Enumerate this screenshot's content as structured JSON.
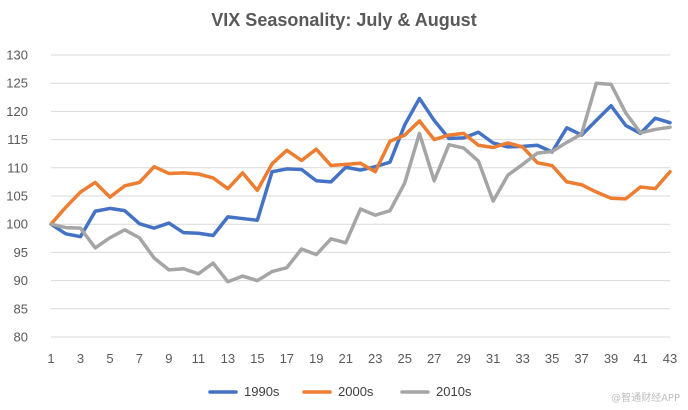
{
  "watermark": "@智通财经APP",
  "chart_data": {
    "type": "line",
    "title": "VIX Seasonality: July & August",
    "xlabel": "",
    "ylabel": "",
    "ylim": [
      80,
      130
    ],
    "yticks": [
      80,
      85,
      90,
      95,
      100,
      105,
      110,
      115,
      120,
      125,
      130
    ],
    "xlim": [
      1,
      43
    ],
    "xticks": [
      1,
      3,
      5,
      7,
      9,
      11,
      13,
      15,
      17,
      19,
      21,
      23,
      25,
      27,
      29,
      31,
      33,
      35,
      37,
      39,
      41,
      43
    ],
    "grid": true,
    "legend_position": "bottom",
    "x": [
      1,
      2,
      3,
      4,
      5,
      6,
      7,
      8,
      9,
      10,
      11,
      12,
      13,
      14,
      15,
      16,
      17,
      18,
      19,
      20,
      21,
      22,
      23,
      24,
      25,
      26,
      27,
      28,
      29,
      30,
      31,
      32,
      33,
      34,
      35,
      36,
      37,
      38,
      39,
      40,
      41,
      42,
      43
    ],
    "series": [
      {
        "name": "1990s",
        "color": "#4472C4",
        "values": [
          100,
          98.3,
          97.8,
          102.3,
          102.8,
          102.4,
          100.1,
          99.3,
          100.2,
          98.5,
          98.4,
          98.0,
          101.3,
          101.0,
          100.7,
          109.3,
          109.8,
          109.7,
          107.7,
          107.5,
          110.1,
          109.6,
          110.2,
          111.0,
          117.6,
          122.3,
          118.4,
          115.2,
          115.3,
          116.3,
          114.4,
          113.7,
          113.8,
          114.0,
          112.8,
          117.1,
          115.8,
          118.4,
          121.0,
          117.5,
          116.1,
          118.8,
          118.0
        ]
      },
      {
        "name": "2000s",
        "color": "#ED7D31",
        "values": [
          100,
          103.0,
          105.7,
          107.4,
          104.8,
          106.8,
          107.4,
          110.2,
          109.0,
          109.1,
          108.9,
          108.2,
          106.3,
          109.1,
          106.0,
          110.7,
          113.1,
          111.3,
          113.3,
          110.4,
          110.6,
          110.8,
          109.3,
          114.7,
          115.8,
          118.3,
          115.0,
          115.8,
          116.1,
          114.0,
          113.6,
          114.4,
          113.7,
          110.9,
          110.4,
          107.5,
          107.0,
          105.7,
          104.6,
          104.5,
          106.6,
          106.3,
          109.3
        ]
      },
      {
        "name": "2010s",
        "color": "#A5A5A5",
        "values": [
          100,
          99.4,
          99.3,
          95.8,
          97.6,
          99.0,
          97.6,
          94.0,
          91.9,
          92.1,
          91.2,
          93.1,
          89.8,
          90.8,
          90.0,
          91.6,
          92.3,
          95.6,
          94.6,
          97.4,
          96.7,
          102.7,
          101.6,
          102.4,
          107.3,
          116.1,
          107.7,
          114.1,
          113.5,
          111.2,
          104.1,
          108.7,
          110.6,
          112.6,
          112.9,
          114.5,
          116.0,
          125.0,
          124.8,
          119.7,
          116.2,
          116.8,
          117.2
        ]
      }
    ]
  }
}
